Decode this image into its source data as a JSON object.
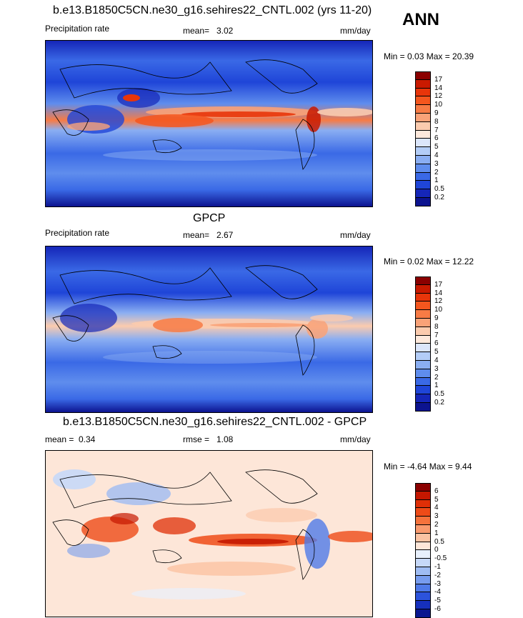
{
  "season": "ANN",
  "panels": [
    {
      "title": "b.e13.B1850C5CN.ne30_g16.sehires22_CNTL.002 (yrs 11-20)",
      "left_label": "Precipitation rate",
      "center_label": "mean=",
      "center_value": "3.02",
      "right_label": "mm/day",
      "minmax": "Min =   0.03 Max =  20.39"
    },
    {
      "title": "GPCP",
      "left_label": "Precipitation rate",
      "center_label": "mean=",
      "center_value": "2.67",
      "right_label": "mm/day",
      "minmax": "Min =   0.02 Max =  12.22"
    },
    {
      "title": "b.e13.B1850C5CN.ne30_g16.sehires22_CNTL.002 - GPCP",
      "left_label": "mean =",
      "left_value": "0.34",
      "center_label": "rmse =",
      "center_value": "1.08",
      "right_label": "mm/day",
      "minmax": "Min =  -4.64 Max =   9.44"
    }
  ],
  "colorbars": {
    "precip": {
      "labels": [
        "17",
        "14",
        "12",
        "10",
        "9",
        "8",
        "7",
        "6",
        "5",
        "4",
        "3",
        "2",
        "1",
        "0.5",
        "0.2"
      ],
      "colors": [
        "#8b0000",
        "#c91a00",
        "#e8350a",
        "#f4561e",
        "#f77b45",
        "#f9a278",
        "#fbcbae",
        "#fde9dc",
        "#dbe6fb",
        "#b3cdf7",
        "#8aaef2",
        "#5f8ded",
        "#3a69e6",
        "#1f45d8",
        "#1526b8",
        "#0c138f"
      ]
    },
    "diff": {
      "labels": [
        "6",
        "5",
        "4",
        "3",
        "2",
        "1",
        "0.5",
        "0",
        "-0.5",
        "-1",
        "-2",
        "-3",
        "-4",
        "-5",
        "-6"
      ],
      "colors": [
        "#8b0000",
        "#c41700",
        "#df2f07",
        "#ee4b18",
        "#f5723c",
        "#f99a6e",
        "#fbc3a3",
        "#fde6d8",
        "#e8f0fc",
        "#c6d8f8",
        "#9fbcf3",
        "#779cee",
        "#4f7ae8",
        "#2c53dc",
        "#1630bd",
        "#0a1690"
      ]
    }
  },
  "chart_data": [
    {
      "type": "heatmap",
      "title": "b.e13.B1850C5CN.ne30_g16.sehires22_CNTL.002 (yrs 11-20)",
      "variable": "Precipitation rate",
      "units": "mm/day",
      "mean": 3.02,
      "min": 0.03,
      "max": 20.39,
      "contour_levels": [
        0.2,
        0.5,
        1,
        2,
        3,
        4,
        5,
        6,
        7,
        8,
        9,
        10,
        12,
        14,
        17
      ]
    },
    {
      "type": "heatmap",
      "title": "GPCP",
      "variable": "Precipitation rate",
      "units": "mm/day",
      "mean": 2.67,
      "min": 0.02,
      "max": 12.22,
      "contour_levels": [
        0.2,
        0.5,
        1,
        2,
        3,
        4,
        5,
        6,
        7,
        8,
        9,
        10,
        12,
        14,
        17
      ]
    },
    {
      "type": "heatmap",
      "title": "b.e13.B1850C5CN.ne30_g16.sehires22_CNTL.002 - GPCP",
      "units": "mm/day",
      "mean": 0.34,
      "rmse": 1.08,
      "min": -4.64,
      "max": 9.44,
      "contour_levels": [
        -6,
        -5,
        -4,
        -3,
        -2,
        -1,
        -0.5,
        0,
        0.5,
        1,
        2,
        3,
        4,
        5,
        6
      ]
    }
  ]
}
